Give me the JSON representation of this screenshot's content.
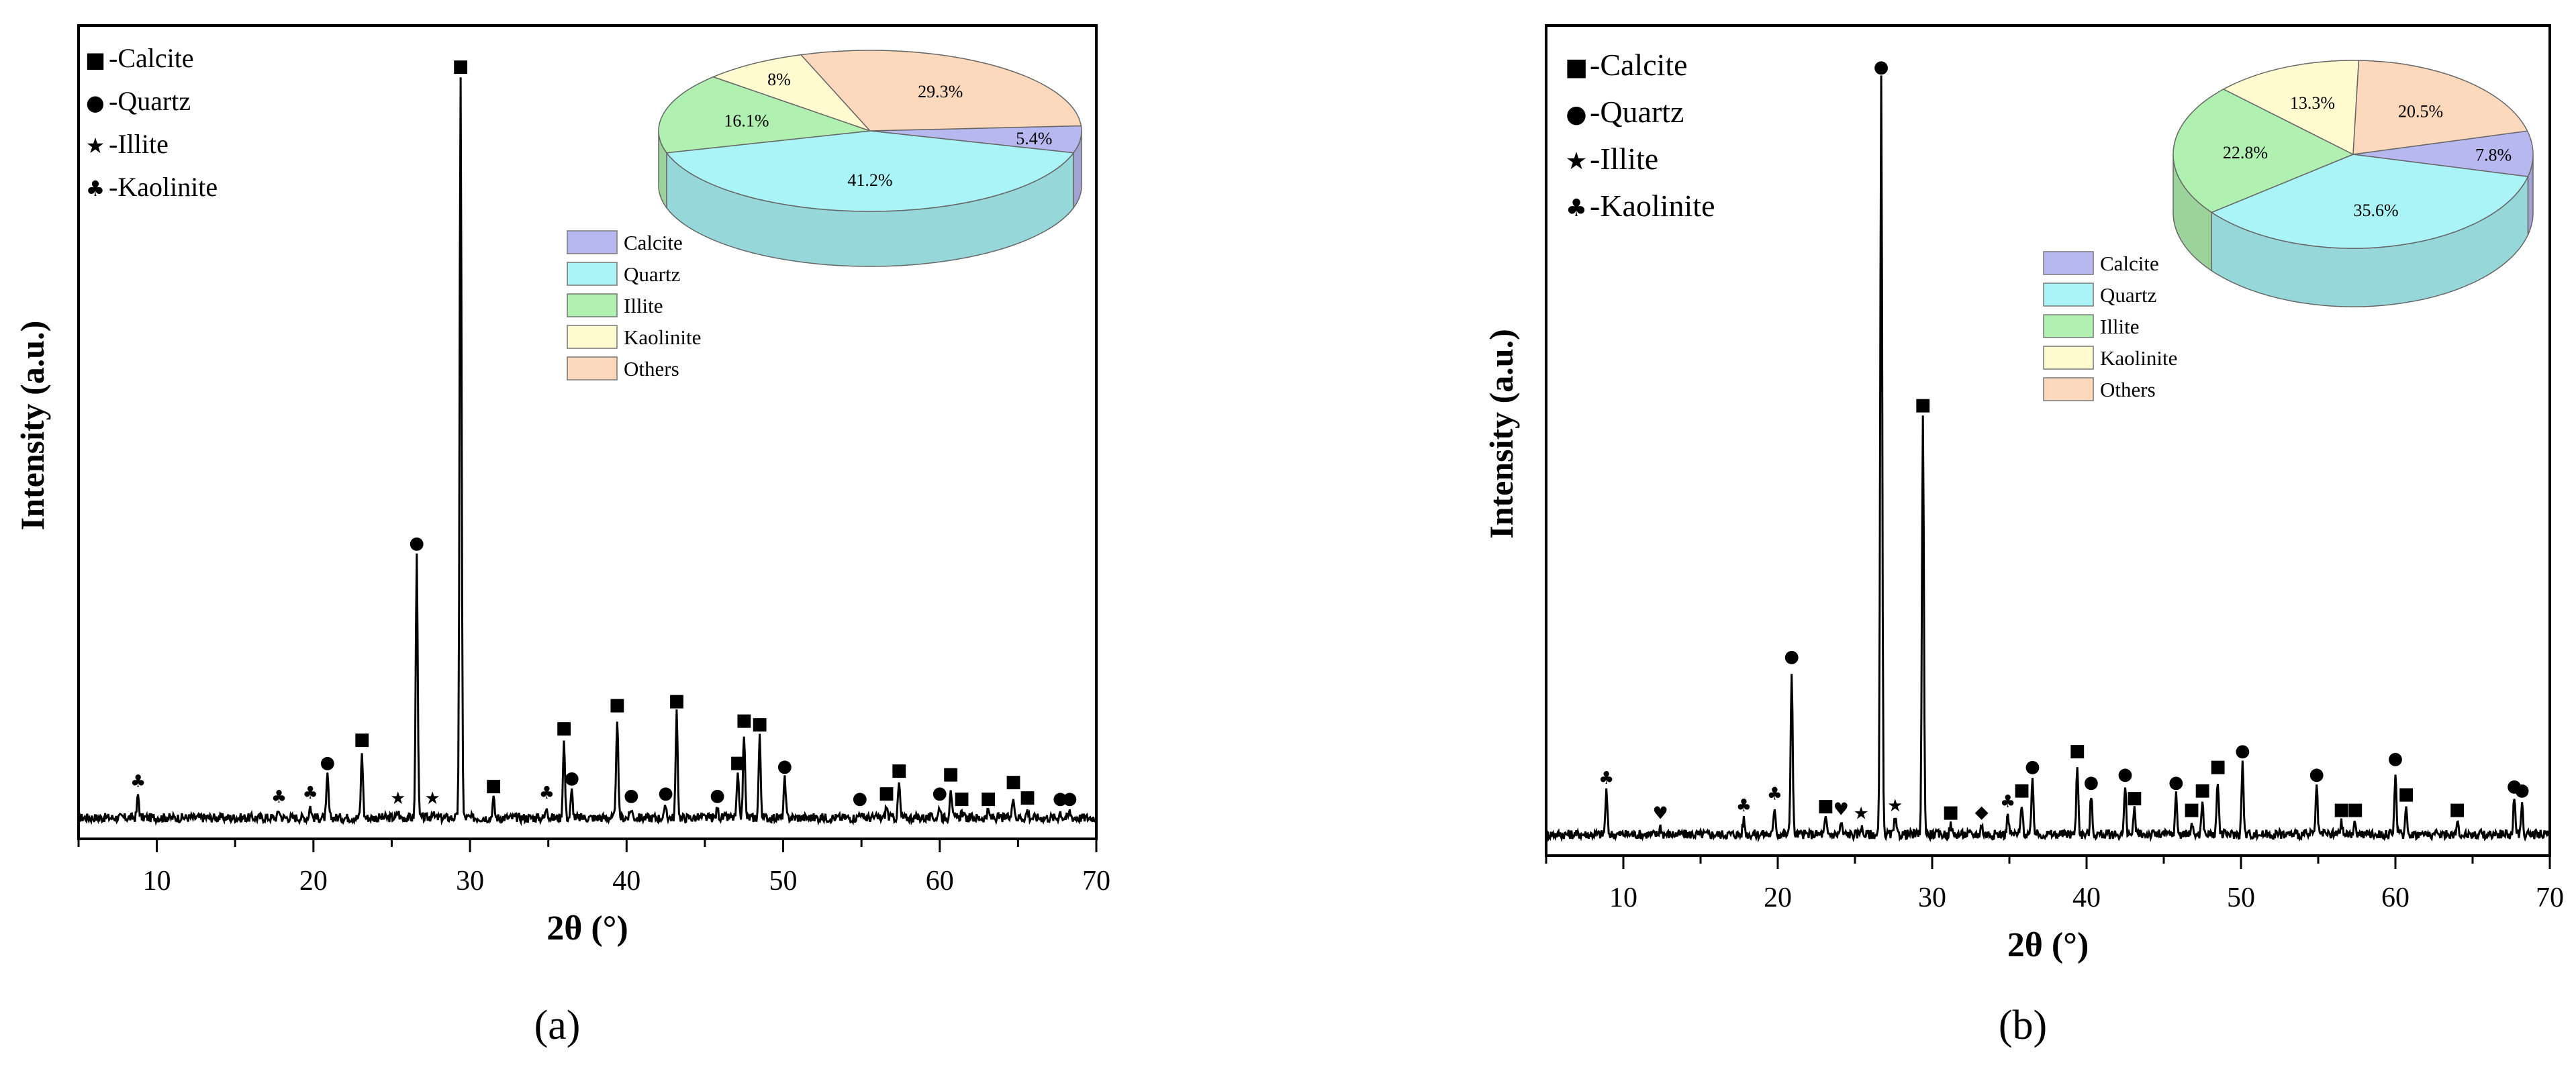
{
  "chart_data": [
    {
      "panel_label": "(a)",
      "type": "line",
      "xlabel": "2θ (°)",
      "ylabel": "Intensity (a.u.)",
      "xlim": [
        5,
        70
      ],
      "xticks": [
        10,
        20,
        30,
        40,
        50,
        60,
        70
      ],
      "grid": false,
      "legend": [
        {
          "symbol": "■",
          "label": "-Calcite"
        },
        {
          "symbol": "●",
          "label": "-Quartz"
        },
        {
          "symbol": "★",
          "label": "-Illite"
        },
        {
          "symbol": "♣",
          "label": "-Kaolinite"
        }
      ],
      "peaks": [
        {
          "x": 8.8,
          "y": 0.03,
          "phase": "♣"
        },
        {
          "x": 17.8,
          "y": 0.01,
          "phase": "♣"
        },
        {
          "x": 19.8,
          "y": 0.015,
          "phase": "♣"
        },
        {
          "x": 20.9,
          "y": 0.055,
          "phase": "●"
        },
        {
          "x": 23.1,
          "y": 0.085,
          "phase": "■"
        },
        {
          "x": 25.4,
          "y": 0.008,
          "phase": "★"
        },
        {
          "x": 26.6,
          "y": 0.34,
          "phase": "●"
        },
        {
          "x": 27.6,
          "y": 0.008,
          "phase": "★"
        },
        {
          "x": 29.4,
          "y": 0.96,
          "phase": "■"
        },
        {
          "x": 31.5,
          "y": 0.025,
          "phase": "■"
        },
        {
          "x": 34.9,
          "y": 0.015,
          "phase": "♣"
        },
        {
          "x": 36.0,
          "y": 0.1,
          "phase": "■"
        },
        {
          "x": 36.5,
          "y": 0.035,
          "phase": "●"
        },
        {
          "x": 39.4,
          "y": 0.13,
          "phase": "■"
        },
        {
          "x": 40.3,
          "y": 0.012,
          "phase": "●"
        },
        {
          "x": 42.5,
          "y": 0.015,
          "phase": "●"
        },
        {
          "x": 43.2,
          "y": 0.135,
          "phase": "■"
        },
        {
          "x": 45.8,
          "y": 0.012,
          "phase": "●"
        },
        {
          "x": 47.1,
          "y": 0.055,
          "phase": "■"
        },
        {
          "x": 47.5,
          "y": 0.11,
          "phase": "■"
        },
        {
          "x": 48.5,
          "y": 0.105,
          "phase": "■"
        },
        {
          "x": 50.1,
          "y": 0.05,
          "phase": "●"
        },
        {
          "x": 54.9,
          "y": 0.008,
          "phase": "●"
        },
        {
          "x": 56.6,
          "y": 0.015,
          "phase": "■"
        },
        {
          "x": 57.4,
          "y": 0.045,
          "phase": "■"
        },
        {
          "x": 60.0,
          "y": 0.015,
          "phase": "●"
        },
        {
          "x": 60.7,
          "y": 0.04,
          "phase": "■"
        },
        {
          "x": 61.4,
          "y": 0.008,
          "phase": "■"
        },
        {
          "x": 63.1,
          "y": 0.008,
          "phase": "■"
        },
        {
          "x": 64.7,
          "y": 0.03,
          "phase": "■"
        },
        {
          "x": 65.6,
          "y": 0.01,
          "phase": "■"
        },
        {
          "x": 67.7,
          "y": 0.008,
          "phase": "●"
        },
        {
          "x": 68.3,
          "y": 0.008,
          "phase": "●"
        }
      ],
      "pie": {
        "type": "pie",
        "legend": [
          "Calcite",
          "Quartz",
          "Illite",
          "Kaolinite",
          "Others"
        ],
        "slices": [
          {
            "name": "Calcite",
            "value": 5.4,
            "label": "5.4%",
            "color": "#b8b8f0"
          },
          {
            "name": "Quartz",
            "value": 41.2,
            "label": "41.2%",
            "color": "#aaf4f8"
          },
          {
            "name": "Illite",
            "value": 16.1,
            "label": "16.1%",
            "color": "#b0f0b0"
          },
          {
            "name": "Kaolinite",
            "value": 8.0,
            "label": "8%",
            "color": "#fffad0"
          },
          {
            "name": "Others",
            "value": 29.3,
            "label": "29.3%",
            "color": "#fcd8bc"
          }
        ]
      }
    },
    {
      "panel_label": "(b)",
      "type": "line",
      "xlabel": "2θ (°)",
      "ylabel": "Intensity (a.u.)",
      "xlim": [
        5,
        70
      ],
      "xticks": [
        10,
        20,
        30,
        40,
        50,
        60,
        70
      ],
      "grid": false,
      "legend": [
        {
          "symbol": "■",
          "label": "-Calcite"
        },
        {
          "symbol": "●",
          "label": "-Quartz"
        },
        {
          "symbol": "★",
          "label": "-Illite"
        },
        {
          "symbol": "♣",
          "label": "-Kaolinite"
        }
      ],
      "peaks": [
        {
          "x": 8.9,
          "y": 0.055,
          "phase": "♣"
        },
        {
          "x": 12.4,
          "y": 0.01,
          "phase": "♥"
        },
        {
          "x": 17.8,
          "y": 0.02,
          "phase": "♣"
        },
        {
          "x": 19.8,
          "y": 0.035,
          "phase": "♣"
        },
        {
          "x": 20.9,
          "y": 0.21,
          "phase": "●"
        },
        {
          "x": 23.1,
          "y": 0.02,
          "phase": "■"
        },
        {
          "x": 24.1,
          "y": 0.015,
          "phase": "♥"
        },
        {
          "x": 25.4,
          "y": 0.01,
          "phase": "★"
        },
        {
          "x": 26.7,
          "y": 0.96,
          "phase": "●"
        },
        {
          "x": 27.6,
          "y": 0.02,
          "phase": "★"
        },
        {
          "x": 29.4,
          "y": 0.53,
          "phase": "■"
        },
        {
          "x": 31.2,
          "y": 0.012,
          "phase": "■"
        },
        {
          "x": 33.2,
          "y": 0.012,
          "phase": "◆"
        },
        {
          "x": 34.9,
          "y": 0.025,
          "phase": "♣"
        },
        {
          "x": 35.8,
          "y": 0.04,
          "phase": "■"
        },
        {
          "x": 36.5,
          "y": 0.07,
          "phase": "●"
        },
        {
          "x": 39.4,
          "y": 0.09,
          "phase": "■"
        },
        {
          "x": 40.3,
          "y": 0.05,
          "phase": "●"
        },
        {
          "x": 42.5,
          "y": 0.06,
          "phase": "●"
        },
        {
          "x": 43.1,
          "y": 0.03,
          "phase": "■"
        },
        {
          "x": 45.8,
          "y": 0.05,
          "phase": "●"
        },
        {
          "x": 46.8,
          "y": 0.015,
          "phase": "■"
        },
        {
          "x": 47.5,
          "y": 0.04,
          "phase": "■"
        },
        {
          "x": 48.5,
          "y": 0.07,
          "phase": "■"
        },
        {
          "x": 50.1,
          "y": 0.09,
          "phase": "●"
        },
        {
          "x": 54.9,
          "y": 0.06,
          "phase": "●"
        },
        {
          "x": 56.5,
          "y": 0.015,
          "phase": "■"
        },
        {
          "x": 57.4,
          "y": 0.015,
          "phase": "■"
        },
        {
          "x": 60.0,
          "y": 0.08,
          "phase": "●"
        },
        {
          "x": 60.7,
          "y": 0.035,
          "phase": "■"
        },
        {
          "x": 64.0,
          "y": 0.015,
          "phase": "■"
        },
        {
          "x": 67.7,
          "y": 0.045,
          "phase": "●"
        },
        {
          "x": 68.2,
          "y": 0.04,
          "phase": "●"
        }
      ],
      "pie": {
        "type": "pie",
        "legend": [
          "Calcite",
          "Quartz",
          "Illite",
          "Kaolinite",
          "Others"
        ],
        "slices": [
          {
            "name": "Calcite",
            "value": 7.8,
            "label": "7.8%",
            "color": "#b8b8f0"
          },
          {
            "name": "Quartz",
            "value": 35.6,
            "label": "35.6%",
            "color": "#aaf4f8"
          },
          {
            "name": "Illite",
            "value": 22.8,
            "label": "22.8%",
            "color": "#b0f0b0"
          },
          {
            "name": "Kaolinite",
            "value": 13.3,
            "label": "13.3%",
            "color": "#fffad0"
          },
          {
            "name": "Others",
            "value": 20.5,
            "label": "20.5%",
            "color": "#fcd8bc"
          }
        ]
      }
    }
  ]
}
